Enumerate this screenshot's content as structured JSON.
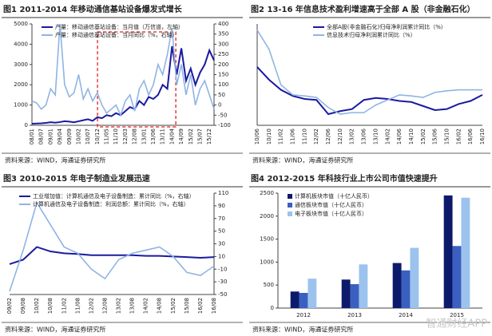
{
  "chart_data": [
    {
      "type": "line",
      "title": "图1  2011-2014 年移动通信基站设备爆发式增长",
      "source": "资料来源：WIND，海通证券研究所",
      "categories": [
        "08/01",
        null,
        "08/07",
        null,
        "09/01",
        null,
        "09/04",
        null,
        "09/09",
        null,
        "10/02",
        null,
        "10/07",
        null,
        "10/12",
        null,
        "11/05",
        null,
        "11/10",
        null,
        "12/03",
        null,
        "12/08",
        null,
        "13/01",
        null,
        "13/06",
        null,
        "13/11",
        null,
        "14/04",
        null,
        "14/09",
        null,
        "15/02",
        null,
        "15/07",
        null,
        "15/12",
        null
      ],
      "series": [
        {
          "name": "产量：移动通信基站设备：当月值（万信道，左轴）",
          "color": "#1a1aa0",
          "values": [
            80,
            90,
            100,
            120,
            150,
            130,
            160,
            200,
            180,
            150,
            200,
            250,
            300,
            220,
            400,
            350,
            500,
            450,
            600,
            500,
            700,
            900,
            800,
            1200,
            1000,
            1400,
            1300,
            1500,
            2000,
            1800,
            3900,
            2500,
            3800,
            2200,
            2800,
            2000,
            2600,
            3000,
            3700,
            3200
          ]
        },
        {
          "name": "产量：移动通信基站设备：当月同比（%，右轴）",
          "color": "#8fb4e3",
          "axis": "y2",
          "values": [
            20,
            10,
            -20,
            0,
            80,
            50,
            400,
            100,
            40,
            60,
            150,
            30,
            80,
            20,
            60,
            0,
            -40,
            -20,
            0,
            -50,
            20,
            50,
            -30,
            80,
            120,
            50,
            100,
            200,
            150,
            250,
            380,
            100,
            200,
            50,
            150,
            0,
            80,
            120,
            50,
            -20
          ]
        }
      ],
      "ylim": [
        0,
        5000
      ],
      "yticks": [
        0,
        1000,
        2000,
        3000,
        4000,
        5000
      ],
      "y2lim": [
        -100,
        400
      ],
      "y2ticks": [
        -100,
        -50,
        0,
        50,
        100,
        150,
        200,
        250,
        300,
        350,
        400
      ]
    },
    {
      "type": "line",
      "title": "图2  13-16 年信息技术盈利增速高于全部 A 股（非金融石化）",
      "source": "资料来源：WIND，海通证券研究所",
      "categories": [
        "10/06",
        "10/10",
        "11/02",
        "11/06",
        "11/10",
        "12/02",
        "12/06",
        "12/10",
        "13/02",
        "13/06",
        "13/10",
        "14/02",
        "14/06",
        "14/10",
        "15/02",
        "15/06",
        "15/10",
        "16/02",
        "16/06",
        "16/10"
      ],
      "series": [
        {
          "name": "全部A股(非金融石化)归母净利润累计同比（%）",
          "color": "#1a1aa0",
          "values": [
            75,
            50,
            30,
            18,
            12,
            10,
            -18,
            -12,
            -8,
            10,
            14,
            12,
            8,
            6,
            -2,
            -10,
            -8,
            2,
            8,
            20
          ]
        },
        {
          "name": "信息技术归母净利润累计同比（%）",
          "color": "#8fb4e3",
          "values": [
            148,
            110,
            40,
            20,
            18,
            15,
            -5,
            -18,
            -15,
            -15,
            0,
            10,
            20,
            18,
            15,
            25,
            28,
            30,
            30,
            30
          ]
        }
      ],
      "ylim": [
        -40,
        160
      ]
    },
    {
      "type": "line",
      "title": "图3  2010-2015 年电子制造业发展迅速",
      "source": "资料来源：WIND，海通证券研究所",
      "categories": [
        "09/02",
        "09/08",
        "10/02",
        "10/08",
        "11/02",
        "11/08",
        "12/02",
        "12/08",
        "13/02",
        "13/08",
        "14/02",
        "14/08",
        "15/02",
        "15/08",
        "16/02",
        "16/08"
      ],
      "series": [
        {
          "name": "工业增加值：计算机通信及电子设备制造：累计同比（%，右轴）",
          "color": "#1a1aa0",
          "values": [
            -2,
            5,
            25,
            18,
            15,
            14,
            12,
            12,
            12,
            12,
            11,
            11,
            10,
            9,
            8,
            9
          ]
        },
        {
          "name": "计算机通信及电子设备制造：利润总额：累计同比（%，右轴）",
          "color": "#8fb4e3",
          "values": [
            -45,
            20,
            95,
            60,
            25,
            15,
            -10,
            -25,
            5,
            15,
            20,
            25,
            10,
            -15,
            -20,
            -5
          ]
        }
      ],
      "ylim": [
        -50,
        110
      ],
      "yticks": [
        -50,
        -30,
        -10,
        10,
        30,
        50,
        70,
        90,
        110
      ],
      "y_axis_side": "right"
    },
    {
      "type": "bar",
      "title": "图4  2012-2015 年科技行业上市公司市值快速提升",
      "source": "资料来源：WIND，海通证券研究所",
      "categories": [
        "2012",
        "2013",
        "2014",
        "2015"
      ],
      "series": [
        {
          "name": "计算机板块市值（十亿人民币）",
          "color": "#0d1a6b",
          "values": [
            360,
            620,
            980,
            2450
          ]
        },
        {
          "name": "通信板块市值（十亿人民币）",
          "color": "#3b5fc0",
          "values": [
            330,
            520,
            820,
            1350
          ]
        },
        {
          "name": "电子板块市值（十亿人民币）",
          "color": "#9cc3ee",
          "values": [
            640,
            950,
            1310,
            2400
          ]
        }
      ],
      "ylim": [
        0,
        2500
      ],
      "yticks": [
        0,
        500,
        1000,
        1500,
        2000,
        2500
      ]
    }
  ],
  "watermark": "智通财经APP"
}
